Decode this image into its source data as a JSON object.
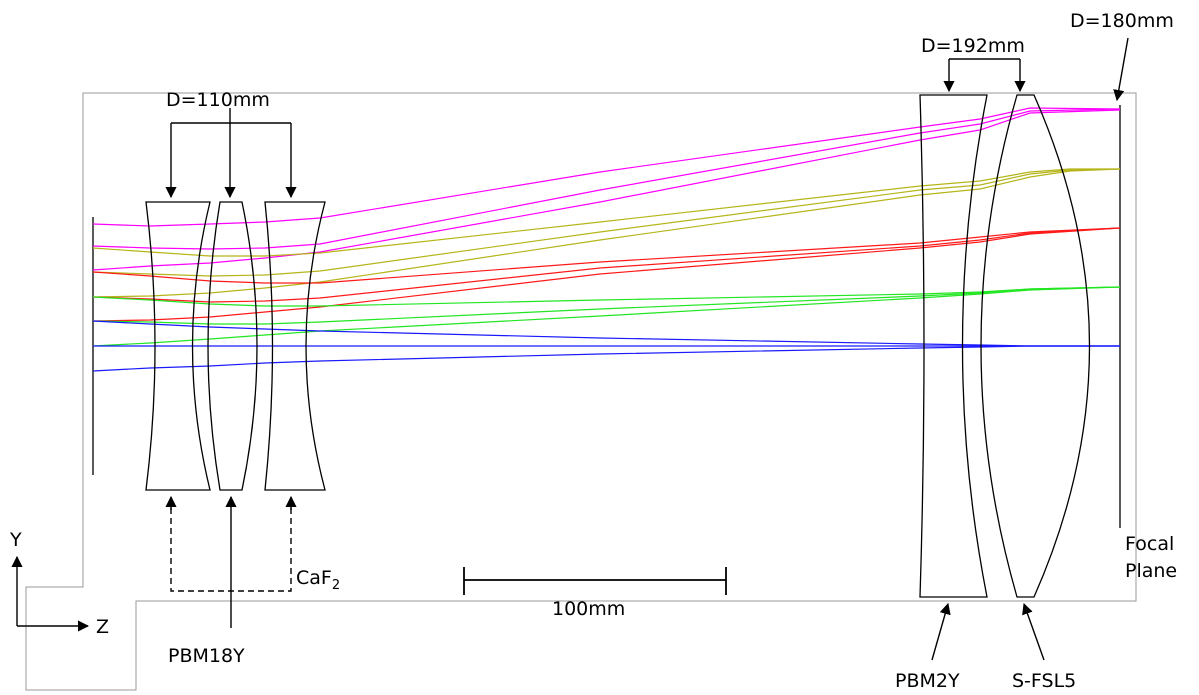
{
  "labels": {
    "d110": "D=110mm",
    "d192": "D=192mm",
    "d180": "D=180mm",
    "caf2_base": "CaF",
    "caf2_sub": "2",
    "pbm18y": "PBM18Y",
    "pbm2y": "PBM2Y",
    "sfsl5": "S-FSL5",
    "focal1": "Focal",
    "focal2": "Plane",
    "scale": "100mm",
    "axis_y": "Y",
    "axis_z": "Z"
  },
  "colors": {
    "magenta": "#ff00ff",
    "olive": "#b5b51a",
    "red": "#ff1a1a",
    "green": "#22e622",
    "blue": "#1a1aff",
    "frame": "#9a9a9a"
  }
}
